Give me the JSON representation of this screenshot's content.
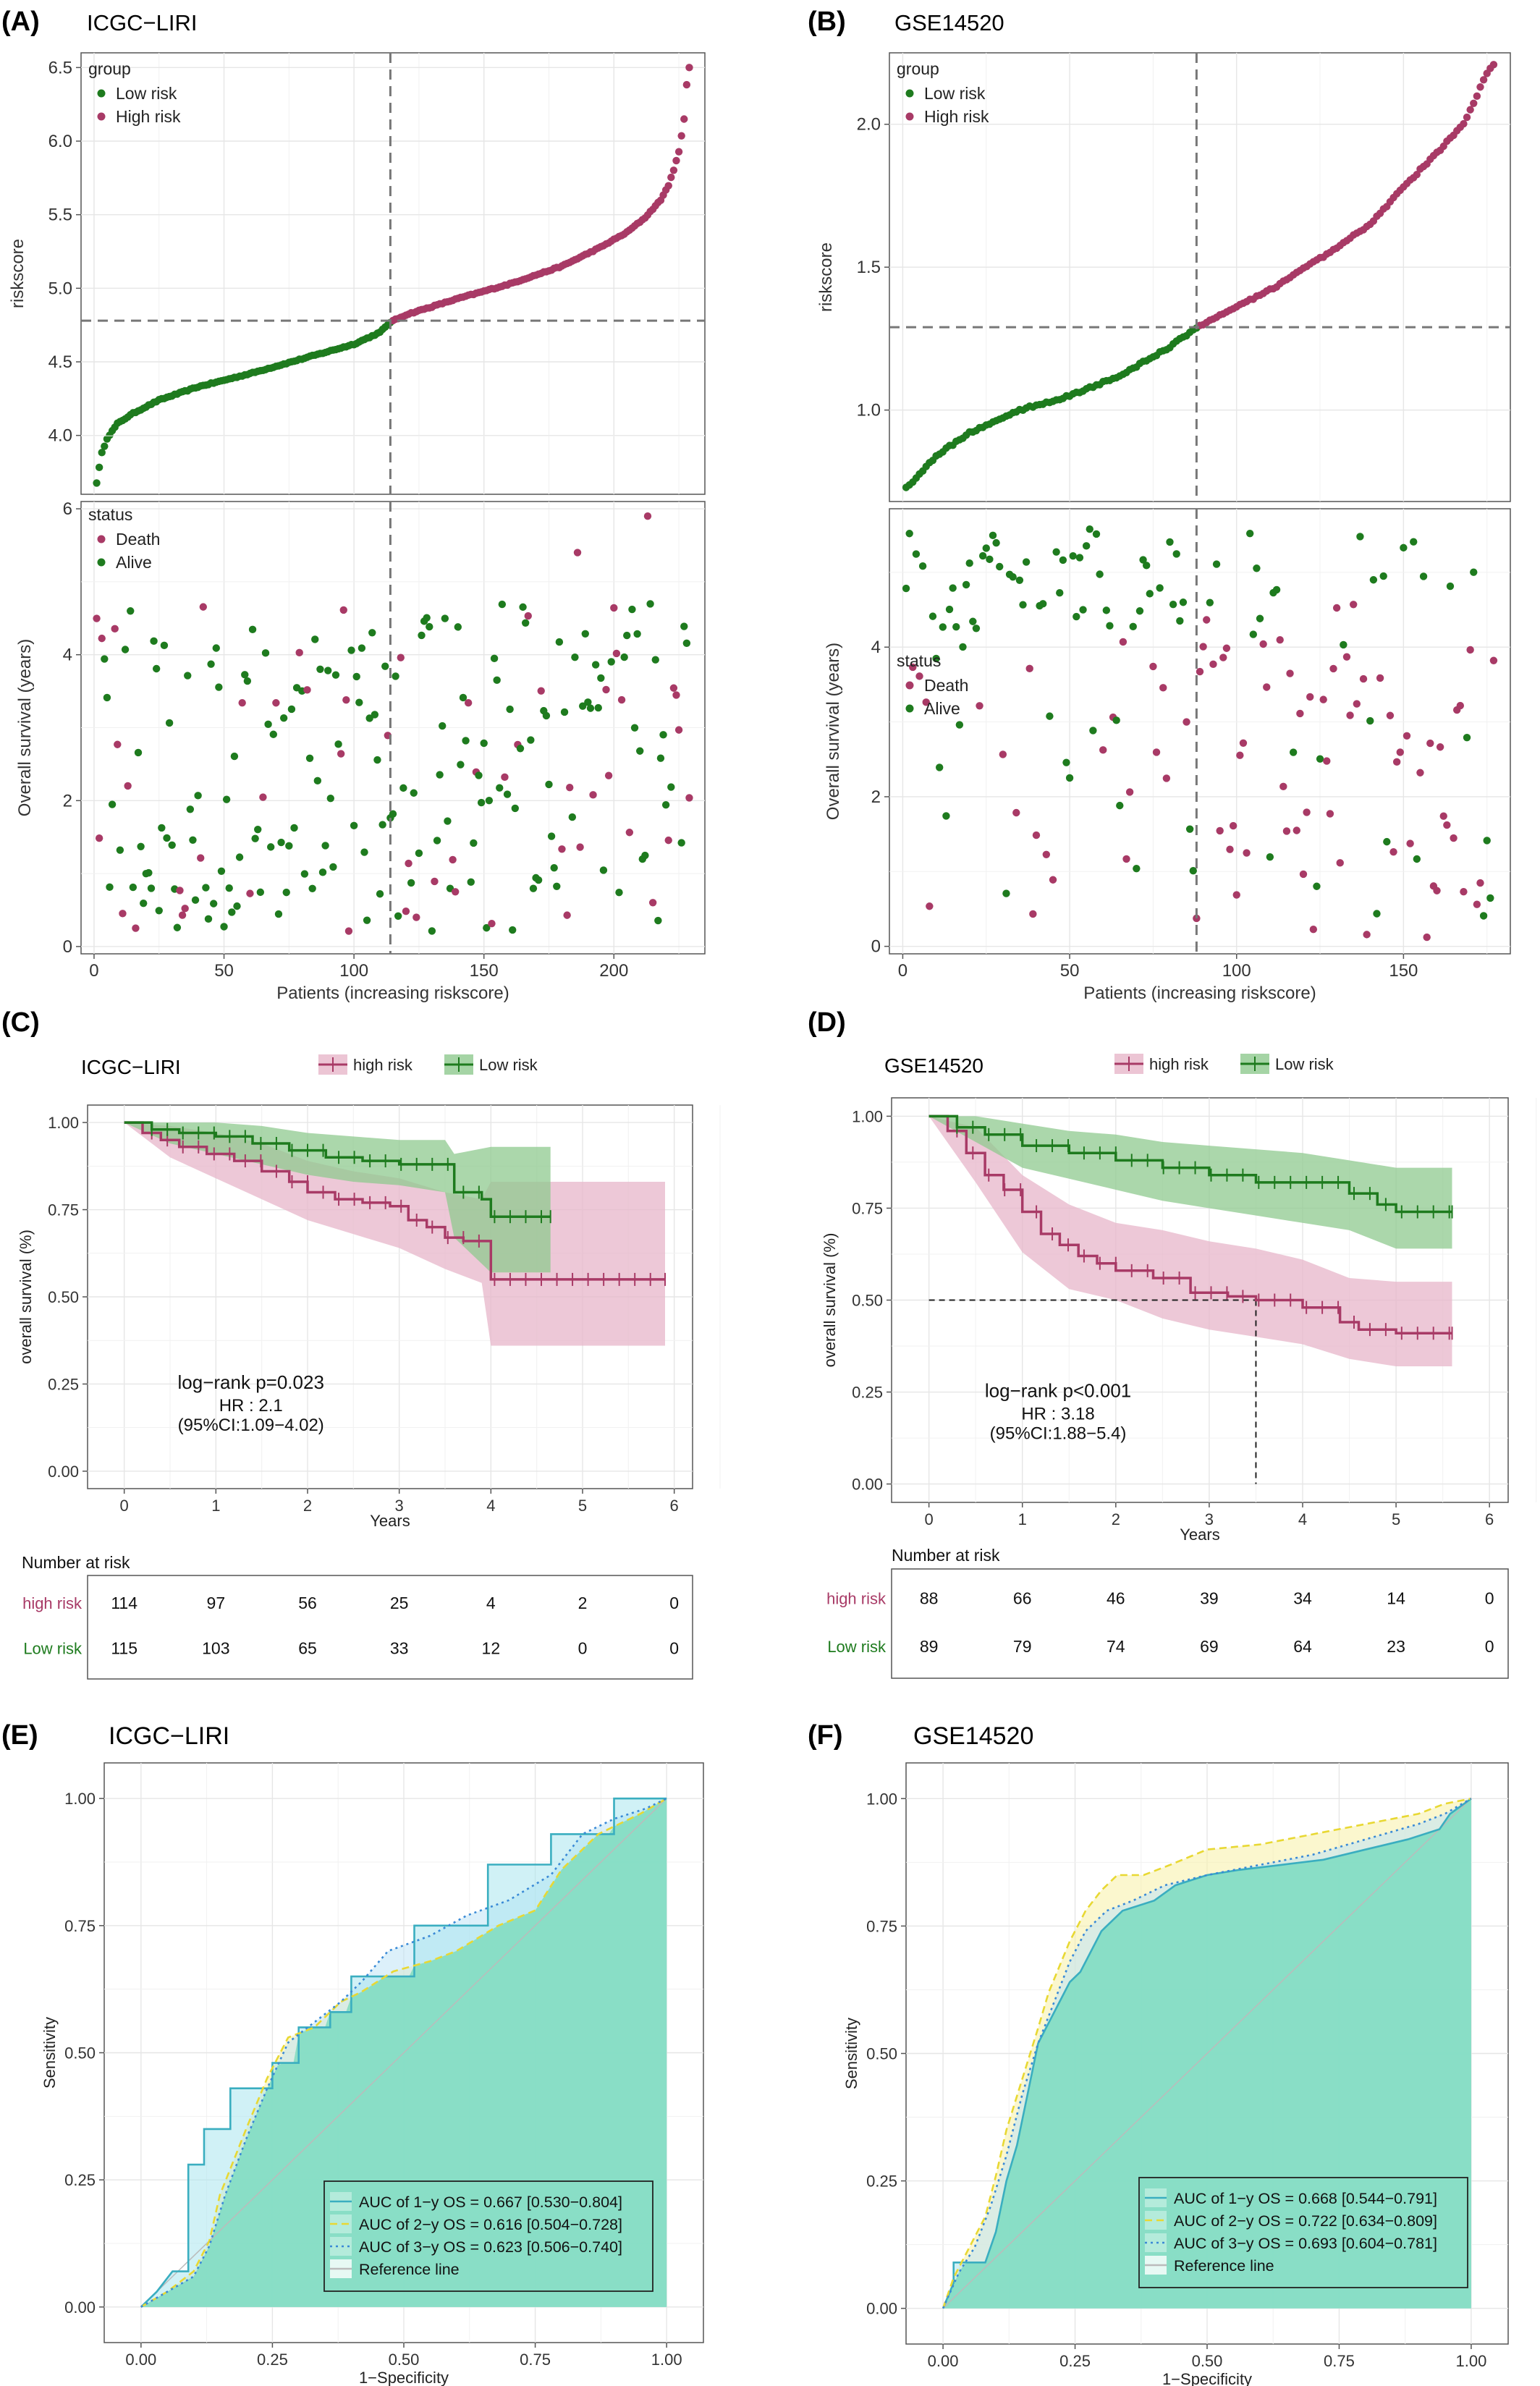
{
  "colors": {
    "low": "#1e7b1e",
    "high": "#a83a66",
    "grid": "#e6e6e6",
    "frame": "#555555",
    "dash": "#777777",
    "green_band": "#8fc98f",
    "pink_band": "#e7b6c9",
    "roc_fill": "#7fdcc0",
    "roc1": "#3aaec0",
    "roc2": "#e8d833",
    "roc3": "#3a8ad6",
    "ref": "#bbbbbb"
  },
  "panels": {
    "A": {
      "label": "(A)",
      "title": "ICGC−LIRI"
    },
    "B": {
      "label": "(B)",
      "title": "GSE14520"
    },
    "C": {
      "label": "(C)",
      "title": "ICGC−LIRI"
    },
    "D": {
      "label": "(D)",
      "title": "GSE14520"
    },
    "E": {
      "label": "(E)",
      "title": "ICGC−LIRI"
    },
    "F": {
      "label": "(F)",
      "title": "GSE14520"
    }
  },
  "chart_data": [
    {
      "id": "A",
      "type": "scatter",
      "title": "ICGC−LIRI",
      "top": {
        "ylabel": "riskscore",
        "ylim": [
          3.6,
          6.6
        ],
        "yticks": [
          "4.0",
          "4.5",
          "5.0",
          "5.5",
          "6.0",
          "6.5"
        ],
        "legend_title": "group",
        "legend": [
          "Low risk",
          "High risk"
        ],
        "cutoff_x": 114,
        "cutoff_y": 4.78,
        "n": 229,
        "curve_x": [
          1,
          3,
          5,
          9,
          15,
          25,
          40,
          60,
          80,
          100,
          110,
          114,
          120,
          140,
          160,
          180,
          195,
          205,
          212,
          218,
          221,
          223,
          225,
          227,
          228,
          229
        ],
        "curve_y": [
          3.68,
          3.88,
          3.98,
          4.08,
          4.15,
          4.24,
          4.33,
          4.42,
          4.52,
          4.62,
          4.7,
          4.77,
          4.82,
          4.93,
          5.03,
          5.15,
          5.28,
          5.38,
          5.48,
          5.6,
          5.7,
          5.8,
          5.93,
          6.15,
          6.38,
          6.5
        ]
      },
      "bottom": {
        "ylabel": "Overall survival (years)",
        "xlabel": "Patients (increasing riskscore)",
        "xlim": [
          -5,
          235
        ],
        "ylim": [
          -0.1,
          6.1
        ],
        "xticks": [
          0,
          50,
          100,
          150,
          200
        ],
        "yticks": [
          0,
          2,
          4,
          6
        ],
        "legend_title": "status",
        "legend": [
          "Death",
          "Alive"
        ]
      }
    },
    {
      "id": "B",
      "type": "scatter",
      "title": "GSE14520",
      "top": {
        "ylabel": "riskscore",
        "ylim": [
          0.68,
          2.25
        ],
        "yticks": [
          "1.0",
          "1.5",
          "2.0"
        ],
        "legend_title": "group",
        "legend": [
          "Low risk",
          "High risk"
        ],
        "cutoff_x": 88,
        "cutoff_y": 1.29,
        "n": 177,
        "curve_x": [
          1,
          3,
          6,
          10,
          20,
          35,
          50,
          65,
          80,
          88,
          95,
          110,
          125,
          140,
          150,
          160,
          168,
          172,
          175,
          177
        ],
        "curve_y": [
          0.73,
          0.75,
          0.79,
          0.84,
          0.92,
          1.0,
          1.05,
          1.12,
          1.22,
          1.29,
          1.33,
          1.42,
          1.53,
          1.65,
          1.78,
          1.9,
          2.0,
          2.1,
          2.18,
          2.21
        ]
      },
      "bottom": {
        "ylabel": "Overall survival (years)",
        "xlabel": "Patients (increasing riskscore)",
        "xlim": [
          -4,
          182
        ],
        "ylim": [
          -0.1,
          5.85
        ],
        "xticks": [
          0,
          50,
          100,
          150
        ],
        "yticks": [
          0,
          2,
          4
        ],
        "legend_title": "status",
        "legend": [
          "Death",
          "Alive"
        ]
      }
    },
    {
      "id": "C",
      "type": "line",
      "title": "ICGC−LIRI",
      "ylabel": "overall survival (%)",
      "xlabel": "Years",
      "xlim": [
        -0.4,
        6.2
      ],
      "ylim": [
        -0.05,
        1.05
      ],
      "xticks": [
        0,
        1,
        2,
        3,
        4,
        5,
        6
      ],
      "yticks": [
        "0.00",
        "0.25",
        "0.50",
        "0.75",
        "1.00"
      ],
      "legend": [
        "high risk",
        "Low risk"
      ],
      "annotations": [
        "log−rank  p=0.023",
        "HR : 2.1",
        "(95%CI:1.09−4.02)"
      ],
      "series": [
        {
          "name": "high risk",
          "x": [
            0,
            0.2,
            0.4,
            0.6,
            0.9,
            1.2,
            1.5,
            1.8,
            2.0,
            2.3,
            2.6,
            2.9,
            3.1,
            3.3,
            3.5,
            3.7,
            3.9,
            4.0,
            5.9
          ],
          "y": [
            1.0,
            0.97,
            0.95,
            0.93,
            0.91,
            0.89,
            0.86,
            0.83,
            0.8,
            0.78,
            0.77,
            0.76,
            0.72,
            0.7,
            0.67,
            0.66,
            0.66,
            0.55,
            0.55
          ]
        },
        {
          "name": "Low risk",
          "x": [
            0,
            0.3,
            0.6,
            1.0,
            1.4,
            1.8,
            2.2,
            2.6,
            3.0,
            3.3,
            3.5,
            3.6,
            3.9,
            4.0,
            4.65
          ],
          "y": [
            1.0,
            0.98,
            0.97,
            0.96,
            0.94,
            0.92,
            0.9,
            0.89,
            0.88,
            0.88,
            0.88,
            0.8,
            0.78,
            0.73,
            0.73
          ]
        }
      ],
      "bands": [
        {
          "name": "high risk",
          "x": [
            0,
            0.5,
            1.0,
            1.5,
            2.0,
            2.5,
            3.0,
            3.5,
            3.9,
            4.0,
            5.9
          ],
          "lo": [
            1.0,
            0.9,
            0.84,
            0.78,
            0.72,
            0.68,
            0.64,
            0.58,
            0.54,
            0.36,
            0.36
          ],
          "hi": [
            1.0,
            0.99,
            0.97,
            0.94,
            0.89,
            0.86,
            0.84,
            0.8,
            0.78,
            0.83,
            0.83
          ]
        },
        {
          "name": "Low risk",
          "x": [
            0,
            0.5,
            1.0,
            1.5,
            2.0,
            2.5,
            3.0,
            3.5,
            3.6,
            4.0,
            4.65
          ],
          "lo": [
            1.0,
            0.94,
            0.91,
            0.88,
            0.85,
            0.83,
            0.82,
            0.8,
            0.67,
            0.57,
            0.57
          ],
          "hi": [
            1.0,
            1.0,
            1.0,
            0.99,
            0.97,
            0.96,
            0.95,
            0.95,
            0.91,
            0.93,
            0.93
          ]
        }
      ],
      "risk_table": {
        "title": "Number at risk",
        "rows": [
          {
            "label": "high risk",
            "values": [
              114,
              97,
              56,
              25,
              4,
              2,
              0
            ]
          },
          {
            "label": "Low risk",
            "values": [
              115,
              103,
              65,
              33,
              12,
              0,
              0
            ]
          }
        ]
      }
    },
    {
      "id": "D",
      "type": "line",
      "title": "GSE14520",
      "ylabel": "overall survival (%)",
      "xlabel": "Years",
      "xlim": [
        -0.4,
        6.2
      ],
      "ylim": [
        -0.05,
        1.05
      ],
      "xticks": [
        0,
        1,
        2,
        3,
        4,
        5,
        6
      ],
      "yticks": [
        "0.00",
        "0.25",
        "0.50",
        "0.75",
        "1.00"
      ],
      "legend": [
        "high risk",
        "Low risk"
      ],
      "annotations": [
        "log−rank  p<0.001",
        "HR : 3.18",
        "(95%CI:1.88−5.4)"
      ],
      "median_x": 3.5,
      "series": [
        {
          "name": "high risk",
          "x": [
            0,
            0.2,
            0.4,
            0.6,
            0.8,
            1.0,
            1.2,
            1.4,
            1.6,
            1.8,
            2.0,
            2.4,
            2.8,
            3.2,
            3.5,
            4.0,
            4.4,
            4.6,
            5.0,
            5.6
          ],
          "y": [
            1.0,
            0.96,
            0.9,
            0.84,
            0.8,
            0.74,
            0.68,
            0.65,
            0.62,
            0.6,
            0.58,
            0.56,
            0.52,
            0.51,
            0.5,
            0.48,
            0.44,
            0.42,
            0.41,
            0.41
          ]
        },
        {
          "name": "Low risk",
          "x": [
            0,
            0.3,
            0.6,
            1.0,
            1.5,
            2.0,
            2.5,
            3.0,
            3.5,
            4.0,
            4.5,
            4.8,
            5.0,
            5.6
          ],
          "y": [
            1.0,
            0.97,
            0.95,
            0.92,
            0.9,
            0.88,
            0.86,
            0.84,
            0.82,
            0.82,
            0.79,
            0.76,
            0.74,
            0.74
          ]
        }
      ],
      "bands": [
        {
          "name": "high risk",
          "x": [
            0,
            0.5,
            1.0,
            1.5,
            2.0,
            2.5,
            3.0,
            3.5,
            4.0,
            4.5,
            5.0,
            5.6
          ],
          "lo": [
            1.0,
            0.82,
            0.63,
            0.53,
            0.5,
            0.45,
            0.42,
            0.4,
            0.38,
            0.34,
            0.32,
            0.32
          ],
          "hi": [
            1.0,
            0.97,
            0.84,
            0.76,
            0.71,
            0.69,
            0.66,
            0.64,
            0.61,
            0.56,
            0.55,
            0.55
          ]
        },
        {
          "name": "Low risk",
          "x": [
            0,
            0.5,
            1.0,
            1.5,
            2.0,
            2.5,
            3.0,
            3.5,
            4.0,
            4.5,
            5.0,
            5.6
          ],
          "lo": [
            1.0,
            0.93,
            0.86,
            0.83,
            0.8,
            0.77,
            0.75,
            0.73,
            0.71,
            0.69,
            0.64,
            0.64
          ],
          "hi": [
            1.0,
            1.0,
            0.98,
            0.96,
            0.95,
            0.93,
            0.92,
            0.91,
            0.9,
            0.88,
            0.86,
            0.86
          ]
        }
      ],
      "risk_table": {
        "title": "Number at risk",
        "rows": [
          {
            "label": "high risk",
            "values": [
              88,
              66,
              46,
              39,
              34,
              14,
              0
            ]
          },
          {
            "label": "Low risk",
            "values": [
              89,
              79,
              74,
              69,
              64,
              23,
              0
            ]
          }
        ]
      }
    },
    {
      "id": "E",
      "type": "line",
      "title": "ICGC−LIRI",
      "ylabel": "Sensitivity",
      "xlabel": "1−Specificity",
      "xlim": [
        -0.07,
        1.07
      ],
      "ylim": [
        -0.07,
        1.07
      ],
      "xticks": [
        "0.00",
        "0.25",
        "0.50",
        "0.75",
        "1.00"
      ],
      "yticks": [
        "0.00",
        "0.25",
        "0.50",
        "0.75",
        "1.00"
      ],
      "series": [
        {
          "name": "AUC of 1−y OS = 0.667 [0.530−0.804]",
          "x": [
            0,
            0.03,
            0.06,
            0.09,
            0.09,
            0.12,
            0.12,
            0.17,
            0.17,
            0.25,
            0.25,
            0.3,
            0.3,
            0.36,
            0.36,
            0.4,
            0.4,
            0.52,
            0.52,
            0.66,
            0.66,
            0.78,
            0.78,
            0.9,
            0.9,
            1.0
          ],
          "y": [
            0,
            0.03,
            0.07,
            0.07,
            0.28,
            0.28,
            0.35,
            0.35,
            0.43,
            0.43,
            0.48,
            0.48,
            0.55,
            0.55,
            0.58,
            0.58,
            0.65,
            0.65,
            0.75,
            0.75,
            0.87,
            0.87,
            0.93,
            0.93,
            1.0,
            1.0
          ]
        },
        {
          "name": "AUC of 2−y OS = 0.616 [0.504−0.728]",
          "x": [
            0,
            0.05,
            0.1,
            0.13,
            0.15,
            0.2,
            0.24,
            0.28,
            0.33,
            0.38,
            0.42,
            0.48,
            0.55,
            0.6,
            0.68,
            0.75,
            0.8,
            0.87,
            0.95,
            1.0
          ],
          "y": [
            0,
            0.03,
            0.07,
            0.13,
            0.22,
            0.35,
            0.45,
            0.53,
            0.55,
            0.6,
            0.62,
            0.66,
            0.68,
            0.7,
            0.75,
            0.78,
            0.86,
            0.93,
            0.97,
            1.0
          ]
        },
        {
          "name": "AUC of 3−y OS = 0.623 [0.506−0.740]",
          "x": [
            0,
            0.05,
            0.1,
            0.13,
            0.16,
            0.2,
            0.24,
            0.28,
            0.33,
            0.38,
            0.42,
            0.47,
            0.55,
            0.62,
            0.7,
            0.78,
            0.84,
            0.9,
            0.96,
            1.0
          ],
          "y": [
            0,
            0.03,
            0.06,
            0.12,
            0.22,
            0.33,
            0.43,
            0.52,
            0.56,
            0.6,
            0.64,
            0.7,
            0.73,
            0.77,
            0.8,
            0.85,
            0.93,
            0.96,
            0.98,
            1.0
          ]
        },
        {
          "name": "Reference line",
          "x": [
            0,
            1
          ],
          "y": [
            0,
            1
          ]
        }
      ]
    },
    {
      "id": "F",
      "type": "line",
      "title": "GSE14520",
      "ylabel": "Sensitivity",
      "xlabel": "1−Specificity",
      "xlim": [
        -0.07,
        1.07
      ],
      "ylim": [
        -0.07,
        1.07
      ],
      "xticks": [
        "0.00",
        "0.25",
        "0.50",
        "0.75",
        "1.00"
      ],
      "yticks": [
        "0.00",
        "0.25",
        "0.50",
        "0.75",
        "1.00"
      ],
      "series": [
        {
          "name": "AUC of 1−y OS = 0.668 [0.544−0.791]",
          "x": [
            0,
            0.02,
            0.02,
            0.08,
            0.1,
            0.12,
            0.14,
            0.16,
            0.18,
            0.2,
            0.22,
            0.24,
            0.26,
            0.28,
            0.3,
            0.34,
            0.4,
            0.44,
            0.5,
            0.56,
            0.64,
            0.72,
            0.8,
            0.88,
            0.94,
            0.96,
            1.0
          ],
          "y": [
            0,
            0.05,
            0.09,
            0.09,
            0.15,
            0.25,
            0.32,
            0.42,
            0.52,
            0.56,
            0.6,
            0.64,
            0.66,
            0.7,
            0.74,
            0.78,
            0.8,
            0.83,
            0.85,
            0.86,
            0.87,
            0.88,
            0.9,
            0.92,
            0.94,
            0.97,
            1.0
          ]
        },
        {
          "name": "AUC of 2−y OS = 0.722 [0.634−0.809]",
          "x": [
            0,
            0.02,
            0.05,
            0.08,
            0.1,
            0.12,
            0.15,
            0.18,
            0.2,
            0.24,
            0.27,
            0.3,
            0.33,
            0.38,
            0.43,
            0.5,
            0.6,
            0.7,
            0.8,
            0.9,
            0.95,
            1.0
          ],
          "y": [
            0,
            0.06,
            0.12,
            0.18,
            0.26,
            0.35,
            0.45,
            0.55,
            0.62,
            0.72,
            0.78,
            0.82,
            0.85,
            0.85,
            0.87,
            0.9,
            0.91,
            0.93,
            0.95,
            0.97,
            0.99,
            1.0
          ]
        },
        {
          "name": "AUC of 3−y OS = 0.693 [0.604−0.781]",
          "x": [
            0,
            0.03,
            0.06,
            0.09,
            0.12,
            0.15,
            0.18,
            0.21,
            0.24,
            0.27,
            0.31,
            0.36,
            0.42,
            0.5,
            0.6,
            0.7,
            0.8,
            0.9,
            0.95,
            1.0
          ],
          "y": [
            0,
            0.07,
            0.12,
            0.2,
            0.3,
            0.42,
            0.52,
            0.6,
            0.68,
            0.74,
            0.78,
            0.8,
            0.83,
            0.85,
            0.87,
            0.89,
            0.92,
            0.95,
            0.97,
            1.0
          ]
        },
        {
          "name": "Reference line",
          "x": [
            0,
            1
          ],
          "y": [
            0,
            1
          ]
        }
      ]
    }
  ]
}
